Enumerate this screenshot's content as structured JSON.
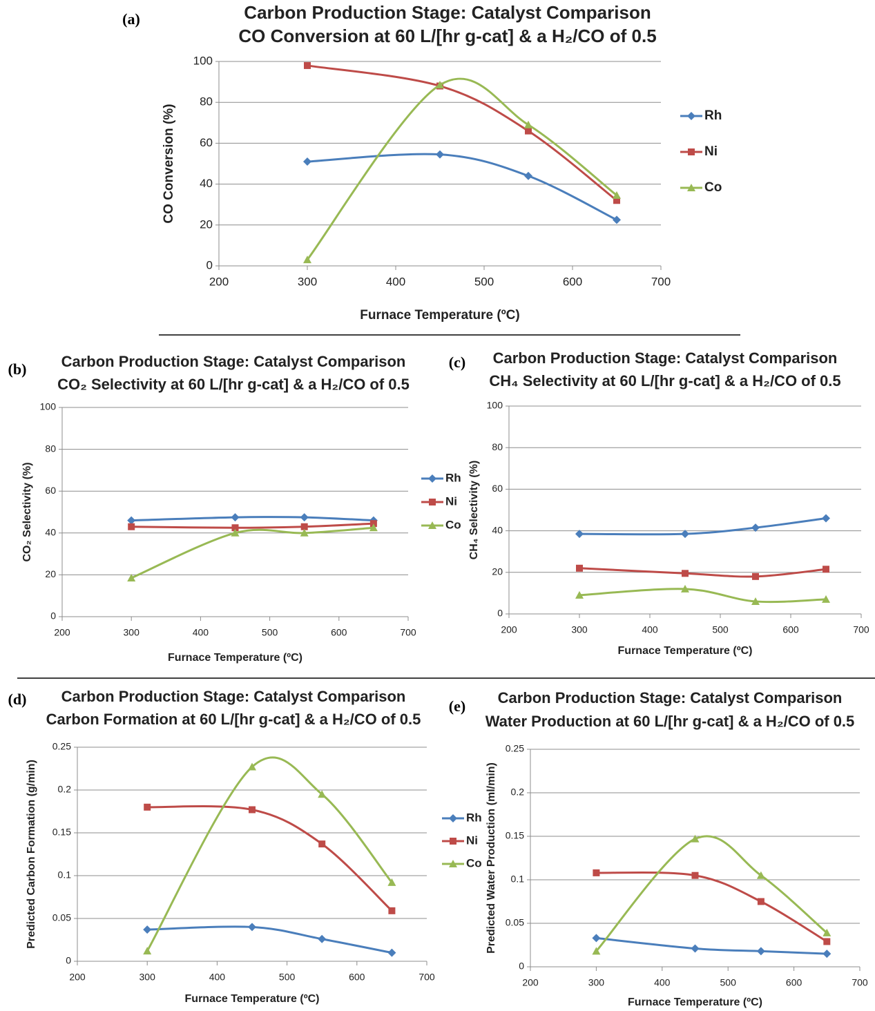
{
  "chart_data": [
    {
      "type": "line",
      "label": "(a)",
      "title": "Carbon Production Stage: Catalyst Comparison",
      "subtitle": "CO Conversion at 60 L/[hr g-cat] & a H₂/CO of 0.5",
      "x_label": "Furnace Temperature (ºC)",
      "y_label": "CO Conversion (%)",
      "x": [
        300,
        450,
        550,
        650
      ],
      "xlim": [
        200,
        700
      ],
      "xticks": [
        200,
        300,
        400,
        500,
        600,
        700
      ],
      "ylim": [
        0,
        100
      ],
      "yticks": [
        0,
        20,
        40,
        60,
        80,
        100
      ],
      "grid": true,
      "smooth": true,
      "legend": "right",
      "series": [
        {
          "name": "Rh",
          "color": "#4a7ebb",
          "marker": "diamond",
          "values": [
            51,
            54.5,
            44,
            22.5
          ]
        },
        {
          "name": "Ni",
          "color": "#be4b48",
          "marker": "square",
          "values": [
            98,
            88,
            66,
            32
          ]
        },
        {
          "name": "Co",
          "color": "#98b954",
          "marker": "triangle",
          "values": [
            3,
            88.5,
            69,
            34.5
          ]
        }
      ]
    },
    {
      "type": "line",
      "label": "(b)",
      "title": "Carbon Production Stage: Catalyst Comparison",
      "subtitle": "CO₂ Selectivity at 60 L/[hr g-cat] & a H₂/CO of 0.5",
      "x_label": "Furnace Temperature (ºC)",
      "y_label": "CO₂ Selectivity (%)",
      "x": [
        300,
        450,
        550,
        650
      ],
      "xlim": [
        200,
        700
      ],
      "xticks": [
        200,
        300,
        400,
        500,
        600,
        700
      ],
      "ylim": [
        0,
        100
      ],
      "yticks": [
        0,
        20,
        40,
        60,
        80,
        100
      ],
      "grid": true,
      "smooth": true,
      "legend": "right",
      "series": [
        {
          "name": "Rh",
          "color": "#4a7ebb",
          "marker": "diamond",
          "values": [
            46,
            47.5,
            47.5,
            46
          ]
        },
        {
          "name": "Ni",
          "color": "#be4b48",
          "marker": "square",
          "values": [
            43,
            42.5,
            43,
            44.5
          ]
        },
        {
          "name": "Co",
          "color": "#98b954",
          "marker": "triangle",
          "values": [
            18.5,
            40,
            40,
            42.5
          ]
        }
      ]
    },
    {
      "type": "line",
      "label": "(c)",
      "title": "Carbon Production Stage: Catalyst Comparison",
      "subtitle": "CH₄ Selectivity at 60 L/[hr g-cat] & a H₂/CO of 0.5",
      "x_label": "Furnace Temperature (ºC)",
      "y_label": "CH₄ Selectivity (%)",
      "x": [
        300,
        450,
        550,
        650
      ],
      "xlim": [
        200,
        700
      ],
      "xticks": [
        200,
        300,
        400,
        500,
        600,
        700
      ],
      "ylim": [
        0,
        100
      ],
      "yticks": [
        0,
        20,
        40,
        60,
        80,
        100
      ],
      "grid": true,
      "smooth": true,
      "series": [
        {
          "color": "#4a7ebb",
          "marker": "diamond",
          "values": [
            38.5,
            38.5,
            41.5,
            46
          ]
        },
        {
          "color": "#be4b48",
          "marker": "square",
          "values": [
            22,
            19.5,
            18,
            21.5
          ]
        },
        {
          "color": "#98b954",
          "marker": "triangle",
          "values": [
            9,
            12,
            6,
            7
          ]
        }
      ]
    },
    {
      "type": "line",
      "label": "(d)",
      "title": "Carbon Production Stage: Catalyst Comparison",
      "subtitle": "Carbon Formation at 60 L/[hr g-cat] & a H₂/CO of 0.5",
      "x_label": "Furnace Temperature (ºC)",
      "y_label": "Predicted Carbon Formation (g/min)",
      "x": [
        300,
        450,
        550,
        650
      ],
      "xlim": [
        200,
        700
      ],
      "xticks": [
        200,
        300,
        400,
        500,
        600,
        700
      ],
      "ylim": [
        0,
        0.25
      ],
      "yticks": [
        0,
        0.05,
        0.1,
        0.15,
        0.2,
        0.25
      ],
      "grid": true,
      "smooth": true,
      "legend": "right",
      "series": [
        {
          "name": "Rh",
          "color": "#4a7ebb",
          "marker": "diamond",
          "values": [
            0.037,
            0.04,
            0.026,
            0.01
          ]
        },
        {
          "name": "Ni",
          "color": "#be4b48",
          "marker": "square",
          "values": [
            0.18,
            0.177,
            0.137,
            0.059
          ]
        },
        {
          "name": "Co",
          "color": "#98b954",
          "marker": "triangle",
          "values": [
            0.012,
            0.227,
            0.195,
            0.092
          ]
        }
      ]
    },
    {
      "type": "line",
      "label": "(e)",
      "title": "Carbon Production Stage: Catalyst Comparison",
      "subtitle": "Water Production at 60 L/[hr g-cat] & a H₂/CO of 0.5",
      "x_label": "Furnace Temperature (ºC)",
      "y_label": "Predicted Water  Production (ml/min)",
      "x": [
        300,
        450,
        550,
        650
      ],
      "xlim": [
        200,
        700
      ],
      "xticks": [
        200,
        300,
        400,
        500,
        600,
        700
      ],
      "ylim": [
        0,
        0.25
      ],
      "yticks": [
        0,
        0.05,
        0.1,
        0.15,
        0.2,
        0.25
      ],
      "grid": true,
      "smooth": true,
      "series": [
        {
          "color": "#4a7ebb",
          "marker": "diamond",
          "values": [
            0.033,
            0.021,
            0.018,
            0.015
          ]
        },
        {
          "color": "#be4b48",
          "marker": "square",
          "values": [
            0.108,
            0.105,
            0.075,
            0.029
          ]
        },
        {
          "color": "#98b954",
          "marker": "triangle",
          "values": [
            0.018,
            0.147,
            0.105,
            0.039
          ]
        }
      ]
    }
  ]
}
